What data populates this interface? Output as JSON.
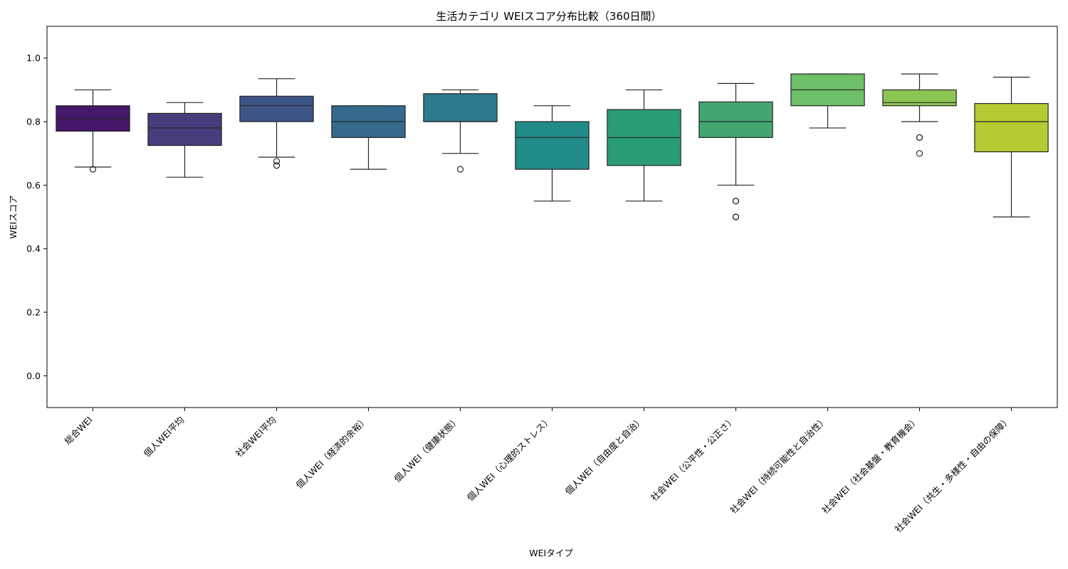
{
  "chart_data": {
    "type": "box",
    "title": "生活カテゴリ WEIスコア分布比較（360日間）",
    "xlabel": "WEIタイプ",
    "ylabel": "WEIスコア",
    "ylim": [
      -0.1,
      1.1
    ],
    "yticks": [
      0.0,
      0.2,
      0.4,
      0.6,
      0.8,
      1.0
    ],
    "ytick_labels": [
      "0.0",
      "0.2",
      "0.4",
      "0.6",
      "0.8",
      "1.0"
    ],
    "grid": false,
    "palette": "viridis",
    "categories": [
      "総合WEI",
      "個人WEI平均",
      "社会WEI平均",
      "個人WEI（経済的余裕）",
      "個人WEI（健康状態）",
      "個人WEI（心理的ストレス）",
      "個人WEI（自由度と自治）",
      "社会WEI（公平性・公正さ）",
      "社会WEI（持続可能性と自治性）",
      "社会WEI（社会基盤・教育機会）",
      "社会WEI（共生・多様性・自由の保障）"
    ],
    "boxes": [
      {
        "whisker_low": 0.657,
        "q1": 0.77,
        "median": 0.81,
        "q3": 0.85,
        "whisker_high": 0.9,
        "outliers": [
          0.65
        ],
        "color": "#45176a"
      },
      {
        "whisker_low": 0.625,
        "q1": 0.725,
        "median": 0.78,
        "q3": 0.826,
        "whisker_high": 0.86,
        "outliers": [],
        "color": "#473d7c"
      },
      {
        "whisker_low": 0.688,
        "q1": 0.8,
        "median": 0.85,
        "q3": 0.88,
        "whisker_high": 0.935,
        "outliers": [
          0.675,
          0.662
        ],
        "color": "#3d5486"
      },
      {
        "whisker_low": 0.65,
        "q1": 0.75,
        "median": 0.8,
        "q3": 0.85,
        "whisker_high": 0.85,
        "outliers": [],
        "color": "#356a8c"
      },
      {
        "whisker_low": 0.7,
        "q1": 0.8,
        "median": 0.8,
        "q3": 0.888,
        "whisker_high": 0.9,
        "outliers": [
          0.65
        ],
        "color": "#2d798d"
      },
      {
        "whisker_low": 0.55,
        "q1": 0.65,
        "median": 0.75,
        "q3": 0.8,
        "whisker_high": 0.85,
        "outliers": [],
        "color": "#218b88"
      },
      {
        "whisker_low": 0.55,
        "q1": 0.662,
        "median": 0.75,
        "q3": 0.838,
        "whisker_high": 0.9,
        "outliers": [],
        "color": "#2a9c78"
      },
      {
        "whisker_low": 0.6,
        "q1": 0.75,
        "median": 0.8,
        "q3": 0.862,
        "whisker_high": 0.92,
        "outliers": [
          0.55,
          0.55,
          0.5,
          0.5
        ],
        "color": "#43a673"
      },
      {
        "whisker_low": 0.78,
        "q1": 0.85,
        "median": 0.9,
        "q3": 0.95,
        "whisker_high": 0.95,
        "outliers": [],
        "color": "#6dbf68"
      },
      {
        "whisker_low": 0.8,
        "q1": 0.85,
        "median": 0.86,
        "q3": 0.9,
        "whisker_high": 0.95,
        "outliers": [
          0.75,
          0.75,
          0.7
        ],
        "color": "#8dc554"
      },
      {
        "whisker_low": 0.5,
        "q1": 0.705,
        "median": 0.8,
        "q3": 0.857,
        "whisker_high": 0.94,
        "outliers": [],
        "color": "#b6ca33"
      }
    ]
  }
}
